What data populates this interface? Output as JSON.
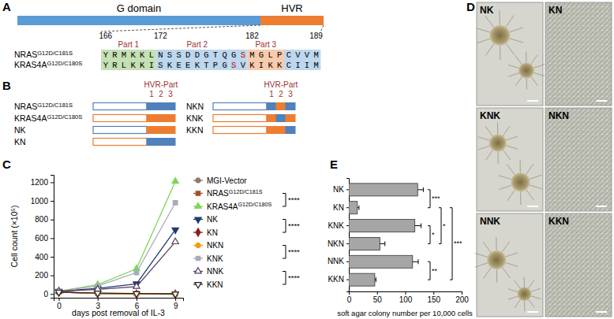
{
  "panel_labels": [
    "A",
    "B",
    "C",
    "D",
    "E"
  ],
  "hvr_diagram": {
    "domains": [
      {
        "label": "G domain",
        "color": "#5b9bd5"
      },
      {
        "label": "HVR",
        "color": "#ed7d31"
      }
    ],
    "position_labels": [
      166,
      172,
      182,
      189
    ],
    "sequences": [
      {
        "name": "NRASG12D/C181S",
        "segments": [
          {
            "text": "YRMKKL",
            "color": "#c5e0b4",
            "part": "Part 1"
          },
          {
            "text": "NSSDDGTQG",
            "color": "#bdd7ee",
            "part": "Part 2"
          },
          {
            "text": "S",
            "color": "#bdd7ee",
            "text_color": "#c00000"
          },
          {
            "text": "MGLP",
            "color": "#f8cbad",
            "part": "Part 3"
          },
          {
            "text": "CVVM",
            "color": "#bdd7ee"
          }
        ]
      },
      {
        "name": "KRAS4AG12D/C180S",
        "segments": [
          {
            "text": "YRLKKI",
            "color": "#c5e0b4"
          },
          {
            "text": "SKEEKTPG",
            "color": "#bdd7ee"
          },
          {
            "text": "S",
            "color": "#bdd7ee",
            "text_color": "#c00000"
          },
          {
            "text": "V",
            "color": "#bdd7ee"
          },
          {
            "text": "KIKK",
            "color": "#f8cbad"
          },
          {
            "text": "CIIM",
            "color": "#bdd7ee"
          }
        ]
      }
    ]
  },
  "constructs": {
    "header": "HVR-Part",
    "part_numbers": [
      1,
      2,
      3
    ],
    "colors": {
      "N": "#4f81bd",
      "K": "#ed7d31"
    },
    "columns": [
      [
        {
          "name": "NRASG12D/C181S",
          "g_domain": "N",
          "hvr": [
            "N",
            "N",
            "N"
          ]
        },
        {
          "name": "KRAS4AG12D/C180S",
          "g_domain": "K",
          "hvr": [
            "K",
            "K",
            "K"
          ]
        },
        {
          "name": "NK",
          "g_domain": "N",
          "hvr": [
            "K",
            "K",
            "K"
          ]
        },
        {
          "name": "KN",
          "g_domain": "K",
          "hvr": [
            "N",
            "N",
            "N"
          ]
        }
      ],
      [
        {
          "name": "NKN",
          "g_domain": "N",
          "hvr": [
            "N",
            "K",
            "N"
          ]
        },
        {
          "name": "KNK",
          "g_domain": "K",
          "hvr": [
            "K",
            "N",
            "K"
          ]
        },
        {
          "name": "KKN",
          "g_domain": "K",
          "hvr": [
            "K",
            "K",
            "N"
          ]
        }
      ]
    ]
  },
  "micrographs": {
    "tiles": [
      [
        "NK",
        "KN"
      ],
      [
        "KNK",
        "NKN"
      ],
      [
        "NNK",
        "KKN"
      ]
    ]
  },
  "chart_data": [
    {
      "type": "line",
      "x": [
        0,
        3,
        6,
        9
      ],
      "xlim": [
        -0.4,
        9.6
      ],
      "xticks": [
        0,
        3,
        6,
        9
      ],
      "ylim": [
        -40,
        1280
      ],
      "yticks": [
        0,
        200,
        400,
        600,
        800,
        1000,
        1200
      ],
      "x_label": "days post removal of IL-3",
      "y_label": "Cell count (×10⁵)",
      "legend": "right",
      "series": [
        {
          "name": "MGI-Vector",
          "color": "#8c7b70",
          "marker": "circle",
          "line_style": "solid",
          "values": [
            20,
            5,
            2,
            0
          ]
        },
        {
          "name": "NRASG12D/C181S",
          "color": "#a0522d",
          "marker": "square",
          "line_style": "solid",
          "values": [
            20,
            8,
            3,
            0
          ]
        },
        {
          "name": "KRAS4AG12D/C180S",
          "color": "#7fd65a",
          "marker": "triangle-up",
          "line_style": "solid",
          "values": [
            30,
            100,
            270,
            1210
          ]
        },
        {
          "name": "NK",
          "color": "#1f3b73",
          "marker": "triangle-down",
          "line_style": "solid",
          "values": [
            30,
            60,
            110,
            690
          ]
        },
        {
          "name": "KN",
          "color": "#8b1e1e",
          "marker": "diamond",
          "line_style": "solid",
          "values": [
            20,
            5,
            0,
            0
          ]
        },
        {
          "name": "NKN",
          "color": "#f39c12",
          "marker": "circle",
          "line_style": "solid",
          "values": [
            20,
            6,
            2,
            0
          ]
        },
        {
          "name": "KNK",
          "color": "#a7a9bd",
          "marker": "square",
          "line_style": "solid",
          "values": [
            30,
            85,
            230,
            980
          ]
        },
        {
          "name": "NNK",
          "color": "#5a3d5c",
          "marker": "triangle-up-open",
          "line_style": "solid",
          "values": [
            30,
            50,
            80,
            560
          ]
        },
        {
          "name": "KKN",
          "color": "#222222",
          "marker": "triangle-down-open",
          "line_style": "solid",
          "values": [
            20,
            10,
            5,
            0
          ]
        }
      ],
      "annotations": [
        {
          "between": [
            "NRASG12D/C181S",
            "KRAS4AG12D/C180S"
          ],
          "label": "****"
        },
        {
          "between": [
            "NK",
            "KN"
          ],
          "label": "****"
        },
        {
          "between": [
            "NKN",
            "KNK"
          ],
          "label": "****"
        },
        {
          "between": [
            "NNK",
            "KKN"
          ],
          "label": "****"
        }
      ]
    },
    {
      "type": "bar",
      "orientation": "horizontal",
      "categories": [
        "NK",
        "KN",
        "KNK",
        "NKN",
        "NNK",
        "KKN"
      ],
      "values": [
        122,
        15,
        117,
        55,
        113,
        46
      ],
      "errors": [
        10,
        3,
        11,
        9,
        10,
        2
      ],
      "color": "#a6a6a6",
      "xlim": [
        0,
        200
      ],
      "xticks": [
        0,
        50,
        100,
        150,
        200
      ],
      "x_label": "soft agar colony number per 10,000 cells",
      "annotations": [
        {
          "between": [
            "NK",
            "KN"
          ],
          "label": "***"
        },
        {
          "between": [
            "KNK",
            "NKN"
          ],
          "label": "*"
        },
        {
          "between": [
            "KN",
            "NKN"
          ],
          "label": "*"
        },
        {
          "between": [
            "KN",
            "KKN"
          ],
          "label": "***"
        },
        {
          "between": [
            "NNK",
            "KKN"
          ],
          "label": "**"
        }
      ]
    }
  ]
}
